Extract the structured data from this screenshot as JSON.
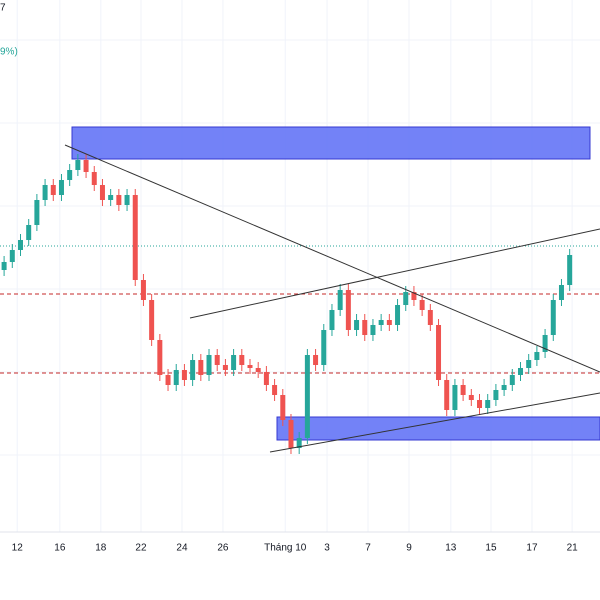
{
  "chart_data": {
    "type": "candlestick",
    "title": "7",
    "subtitle": "9%)",
    "up_color": "#26a69a",
    "down_color": "#ef5350",
    "xlim": [
      -0.5,
      72.7
    ],
    "ylim": [
      0,
      600
    ],
    "xticks": [
      {
        "value": 1.6,
        "label": "12"
      },
      {
        "value": 6.8,
        "label": "16"
      },
      {
        "value": 11.8,
        "label": "18"
      },
      {
        "value": 16.7,
        "label": "22"
      },
      {
        "value": 21.7,
        "label": "24"
      },
      {
        "value": 26.7,
        "label": "26"
      },
      {
        "value": 34.3,
        "label": "Tháng 10"
      },
      {
        "value": 39.4,
        "label": "3"
      },
      {
        "value": 44.4,
        "label": "7"
      },
      {
        "value": 49.4,
        "label": "9"
      },
      {
        "value": 54.5,
        "label": "13"
      },
      {
        "value": 59.4,
        "label": "15"
      },
      {
        "value": 64.4,
        "label": "17"
      },
      {
        "value": 69.3,
        "label": "21"
      }
    ],
    "open": [
      330,
      338,
      350,
      360,
      375,
      400,
      415,
      405,
      420,
      430,
      440,
      428,
      415,
      400,
      405,
      395,
      405,
      320,
      300,
      260,
      225,
      215,
      230,
      220,
      240,
      225,
      245,
      235,
      230,
      245,
      235,
      232,
      228,
      215,
      205,
      180,
      152,
      162,
      245,
      235,
      270,
      290,
      310,
      270,
      280,
      265,
      275,
      280,
      275,
      295,
      308,
      300,
      290,
      275,
      220,
      190,
      215,
      205,
      200,
      192,
      200,
      210,
      215,
      225,
      232,
      240,
      248,
      265,
      300,
      315
    ],
    "high": [
      344,
      356,
      366,
      381,
      406,
      421,
      421,
      426,
      436,
      446,
      446,
      434,
      421,
      411,
      411,
      411,
      411,
      326,
      306,
      266,
      231,
      236,
      236,
      246,
      246,
      251,
      251,
      241,
      251,
      251,
      241,
      238,
      234,
      221,
      211,
      186,
      168,
      251,
      251,
      276,
      296,
      316,
      316,
      286,
      286,
      281,
      286,
      286,
      301,
      314,
      314,
      306,
      296,
      281,
      226,
      221,
      221,
      211,
      206,
      206,
      216,
      221,
      231,
      238,
      246,
      254,
      271,
      306,
      321,
      351
    ],
    "low": [
      324,
      332,
      344,
      354,
      369,
      394,
      399,
      399,
      414,
      424,
      422,
      409,
      394,
      394,
      389,
      389,
      314,
      294,
      254,
      219,
      209,
      209,
      214,
      214,
      219,
      219,
      229,
      224,
      224,
      229,
      226,
      222,
      209,
      199,
      174,
      146,
      146,
      156,
      229,
      229,
      264,
      284,
      264,
      264,
      259,
      259,
      269,
      269,
      269,
      289,
      294,
      284,
      269,
      214,
      184,
      184,
      199,
      194,
      186,
      186,
      194,
      204,
      209,
      219,
      226,
      234,
      242,
      259,
      294,
      309
    ],
    "close": [
      338,
      350,
      360,
      375,
      400,
      415,
      405,
      420,
      430,
      440,
      428,
      415,
      400,
      405,
      395,
      405,
      320,
      300,
      260,
      225,
      215,
      230,
      220,
      240,
      225,
      245,
      235,
      230,
      245,
      235,
      232,
      228,
      215,
      205,
      180,
      152,
      162,
      245,
      235,
      270,
      290,
      310,
      270,
      280,
      265,
      275,
      280,
      275,
      295,
      308,
      300,
      290,
      275,
      220,
      190,
      215,
      205,
      200,
      192,
      200,
      210,
      215,
      225,
      232,
      240,
      248,
      265,
      300,
      315,
      345
    ]
  }
}
